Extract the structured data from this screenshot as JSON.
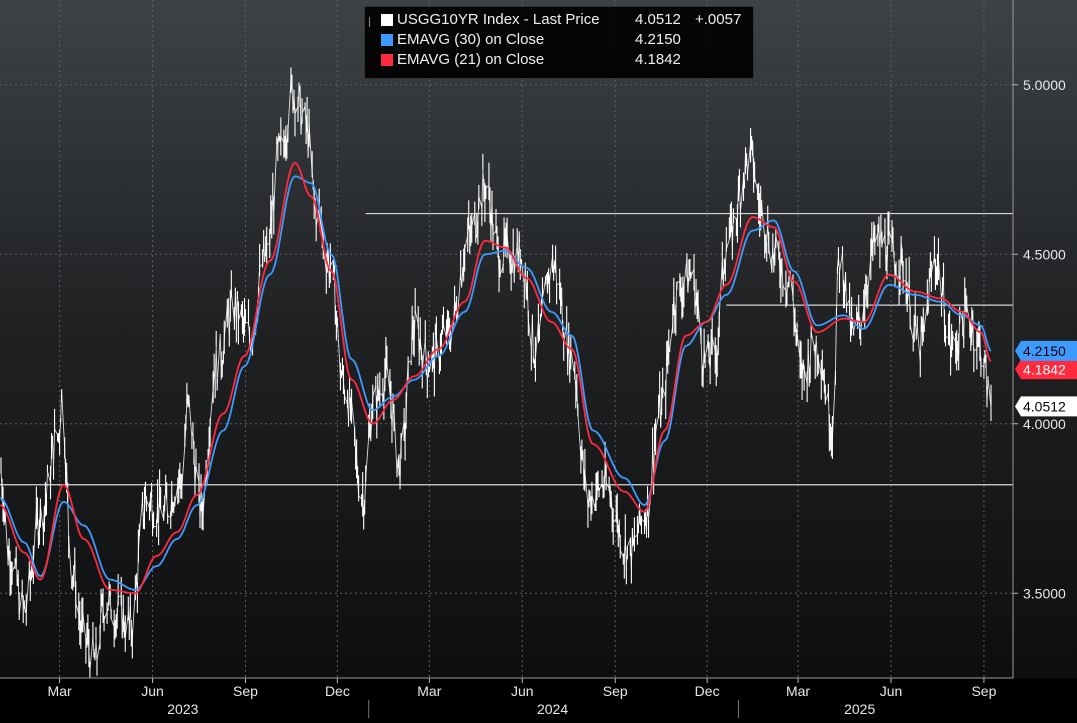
{
  "colors": {
    "price": "#ffffff",
    "ema30": "#3d9bff",
    "ema21": "#ff2a3d",
    "grid": "#5c6066",
    "axis_text": "#e8e8e8",
    "hline": "#d8d8d8"
  },
  "legend": {
    "rows": [
      {
        "label": "USGG10YR Index - Last Price",
        "value": "4.0512",
        "change": "+.0057",
        "color": "#ffffff"
      },
      {
        "label": "EMAVG (30)  on Close",
        "value": "4.2150",
        "change": "",
        "color": "#3d9bff"
      },
      {
        "label": "EMAVG (21)  on Close",
        "value": "4.1842",
        "change": "",
        "color": "#ff2a3d"
      }
    ]
  },
  "chart_data": {
    "type": "line",
    "ylim": [
      3.25,
      5.25
    ],
    "yticks": [
      "5.0000",
      "4.5000",
      "4.0000",
      "3.5000"
    ],
    "ytick_values": [
      5.0,
      4.5,
      4.0,
      3.5
    ],
    "month_ticks": [
      "Mar",
      "Jun",
      "Sep",
      "Dec",
      "Mar",
      "Jun",
      "Sep",
      "Dec",
      "Mar",
      "Jun",
      "Sep"
    ],
    "month_tick_dates": [
      "2023-03-01",
      "2023-06-01",
      "2023-09-01",
      "2023-12-01",
      "2024-03-01",
      "2024-06-01",
      "2024-09-01",
      "2024-12-01",
      "2025-03-01",
      "2025-06-01",
      "2025-09-01"
    ],
    "years": [
      "2023",
      "2024",
      "2025"
    ],
    "year_dates": [
      "2023-07-01",
      "2024-07-01",
      "2025-05-01"
    ],
    "xlim": [
      "2023-01-01",
      "2025-09-08"
    ],
    "last_values": {
      "ema30": "4.2150",
      "ema21": "4.1842",
      "price": "4.0512"
    },
    "hlines": [
      {
        "y": 4.62,
        "start": "2023-12-29"
      },
      {
        "y": 4.35,
        "start": "2024-12-20"
      },
      {
        "y": 3.82,
        "start": "2023-01-01"
      }
    ],
    "price_anchors": [
      [
        "2023-01-01",
        3.87
      ],
      [
        "2023-01-10",
        3.62
      ],
      [
        "2023-01-25",
        3.45
      ],
      [
        "2023-02-10",
        3.73
      ],
      [
        "2023-02-28",
        3.97
      ],
      [
        "2023-03-03",
        4.08
      ],
      [
        "2023-03-13",
        3.58
      ],
      [
        "2023-03-24",
        3.38
      ],
      [
        "2023-04-05",
        3.3
      ],
      [
        "2023-04-15",
        3.48
      ],
      [
        "2023-04-28",
        3.44
      ],
      [
        "2023-05-10",
        3.4
      ],
      [
        "2023-05-26",
        3.78
      ],
      [
        "2023-06-10",
        3.74
      ],
      [
        "2023-06-30",
        3.84
      ],
      [
        "2023-07-06",
        4.05
      ],
      [
        "2023-07-19",
        3.75
      ],
      [
        "2023-08-03",
        4.18
      ],
      [
        "2023-08-21",
        4.34
      ],
      [
        "2023-09-05",
        4.26
      ],
      [
        "2023-09-21",
        4.49
      ],
      [
        "2023-10-05",
        4.8
      ],
      [
        "2023-10-19",
        4.98
      ],
      [
        "2023-10-31",
        4.88
      ],
      [
        "2023-11-10",
        4.63
      ],
      [
        "2023-11-24",
        4.47
      ],
      [
        "2023-12-07",
        4.12
      ],
      [
        "2023-12-27",
        3.79
      ],
      [
        "2024-01-05",
        4.05
      ],
      [
        "2024-01-18",
        4.14
      ],
      [
        "2024-02-01",
        3.88
      ],
      [
        "2024-02-15",
        4.28
      ],
      [
        "2024-03-01",
        4.18
      ],
      [
        "2024-03-20",
        4.27
      ],
      [
        "2024-04-10",
        4.55
      ],
      [
        "2024-04-25",
        4.7
      ],
      [
        "2024-05-10",
        4.5
      ],
      [
        "2024-05-31",
        4.5
      ],
      [
        "2024-06-14",
        4.22
      ],
      [
        "2024-07-01",
        4.47
      ],
      [
        "2024-07-20",
        4.2
      ],
      [
        "2024-08-05",
        3.78
      ],
      [
        "2024-08-20",
        3.82
      ],
      [
        "2024-09-16",
        3.62
      ],
      [
        "2024-10-01",
        3.74
      ],
      [
        "2024-10-15",
        4.03
      ],
      [
        "2024-11-01",
        4.38
      ],
      [
        "2024-11-15",
        4.44
      ],
      [
        "2024-11-30",
        4.18
      ],
      [
        "2024-12-10",
        4.22
      ],
      [
        "2024-12-20",
        4.53
      ],
      [
        "2025-01-13",
        4.79
      ],
      [
        "2025-01-24",
        4.62
      ],
      [
        "2025-02-07",
        4.49
      ],
      [
        "2025-02-21",
        4.42
      ],
      [
        "2025-03-04",
        4.15
      ],
      [
        "2025-03-20",
        4.24
      ],
      [
        "2025-04-04",
        4.0
      ],
      [
        "2025-04-11",
        4.49
      ],
      [
        "2025-04-25",
        4.26
      ],
      [
        "2025-05-19",
        4.54
      ],
      [
        "2025-06-10",
        4.48
      ],
      [
        "2025-06-30",
        4.23
      ],
      [
        "2025-07-15",
        4.48
      ],
      [
        "2025-08-01",
        4.22
      ],
      [
        "2025-08-15",
        4.32
      ],
      [
        "2025-08-29",
        4.23
      ],
      [
        "2025-09-08",
        4.05
      ]
    ],
    "ema30_anchors": [
      [
        "2023-01-01",
        3.78
      ],
      [
        "2023-01-25",
        3.65
      ],
      [
        "2023-02-10",
        3.55
      ],
      [
        "2023-03-05",
        3.77
      ],
      [
        "2023-03-25",
        3.7
      ],
      [
        "2023-04-20",
        3.54
      ],
      [
        "2023-05-15",
        3.51
      ],
      [
        "2023-06-05",
        3.58
      ],
      [
        "2023-06-25",
        3.66
      ],
      [
        "2023-07-15",
        3.76
      ],
      [
        "2023-08-10",
        3.98
      ],
      [
        "2023-08-31",
        4.17
      ],
      [
        "2023-09-25",
        4.44
      ],
      [
        "2023-10-20",
        4.73
      ],
      [
        "2023-11-05",
        4.71
      ],
      [
        "2023-11-25",
        4.5
      ],
      [
        "2023-12-15",
        4.19
      ],
      [
        "2024-01-05",
        4.04
      ],
      [
        "2024-01-25",
        4.08
      ],
      [
        "2024-02-15",
        4.13
      ],
      [
        "2024-03-10",
        4.2
      ],
      [
        "2024-04-05",
        4.33
      ],
      [
        "2024-04-25",
        4.5
      ],
      [
        "2024-05-15",
        4.51
      ],
      [
        "2024-06-05",
        4.46
      ],
      [
        "2024-06-30",
        4.33
      ],
      [
        "2024-07-20",
        4.26
      ],
      [
        "2024-08-10",
        3.98
      ],
      [
        "2024-09-10",
        3.84
      ],
      [
        "2024-09-30",
        3.76
      ],
      [
        "2024-10-20",
        3.95
      ],
      [
        "2024-11-10",
        4.23
      ],
      [
        "2024-11-30",
        4.3
      ],
      [
        "2024-12-20",
        4.38
      ],
      [
        "2025-01-15",
        4.57
      ],
      [
        "2025-02-05",
        4.6
      ],
      [
        "2025-02-25",
        4.45
      ],
      [
        "2025-03-20",
        4.29
      ],
      [
        "2025-04-15",
        4.32
      ],
      [
        "2025-05-05",
        4.28
      ],
      [
        "2025-05-30",
        4.41
      ],
      [
        "2025-06-25",
        4.38
      ],
      [
        "2025-07-20",
        4.36
      ],
      [
        "2025-08-10",
        4.32
      ],
      [
        "2025-08-29",
        4.29
      ],
      [
        "2025-09-08",
        4.215
      ]
    ],
    "ema21_anchors": [
      [
        "2023-01-01",
        3.76
      ],
      [
        "2023-01-25",
        3.62
      ],
      [
        "2023-02-10",
        3.54
      ],
      [
        "2023-03-05",
        3.82
      ],
      [
        "2023-03-25",
        3.66
      ],
      [
        "2023-04-20",
        3.51
      ],
      [
        "2023-05-15",
        3.5
      ],
      [
        "2023-06-05",
        3.61
      ],
      [
        "2023-06-25",
        3.68
      ],
      [
        "2023-07-15",
        3.79
      ],
      [
        "2023-08-10",
        4.03
      ],
      [
        "2023-08-31",
        4.2
      ],
      [
        "2023-09-25",
        4.48
      ],
      [
        "2023-10-20",
        4.77
      ],
      [
        "2023-11-05",
        4.67
      ],
      [
        "2023-11-25",
        4.45
      ],
      [
        "2023-12-15",
        4.13
      ],
      [
        "2024-01-05",
        4.0
      ],
      [
        "2024-01-25",
        4.07
      ],
      [
        "2024-02-15",
        4.14
      ],
      [
        "2024-03-10",
        4.22
      ],
      [
        "2024-04-05",
        4.36
      ],
      [
        "2024-04-25",
        4.54
      ],
      [
        "2024-05-15",
        4.52
      ],
      [
        "2024-06-05",
        4.43
      ],
      [
        "2024-06-30",
        4.3
      ],
      [
        "2024-07-20",
        4.22
      ],
      [
        "2024-08-10",
        3.94
      ],
      [
        "2024-09-10",
        3.8
      ],
      [
        "2024-09-30",
        3.74
      ],
      [
        "2024-10-20",
        3.98
      ],
      [
        "2024-11-10",
        4.26
      ],
      [
        "2024-11-30",
        4.3
      ],
      [
        "2024-12-20",
        4.41
      ],
      [
        "2025-01-15",
        4.61
      ],
      [
        "2025-02-05",
        4.58
      ],
      [
        "2025-02-25",
        4.42
      ],
      [
        "2025-03-20",
        4.27
      ],
      [
        "2025-04-15",
        4.31
      ],
      [
        "2025-05-05",
        4.3
      ],
      [
        "2025-05-30",
        4.44
      ],
      [
        "2025-06-25",
        4.39
      ],
      [
        "2025-07-20",
        4.37
      ],
      [
        "2025-08-10",
        4.33
      ],
      [
        "2025-08-29",
        4.27
      ],
      [
        "2025-09-08",
        4.1842
      ]
    ]
  }
}
